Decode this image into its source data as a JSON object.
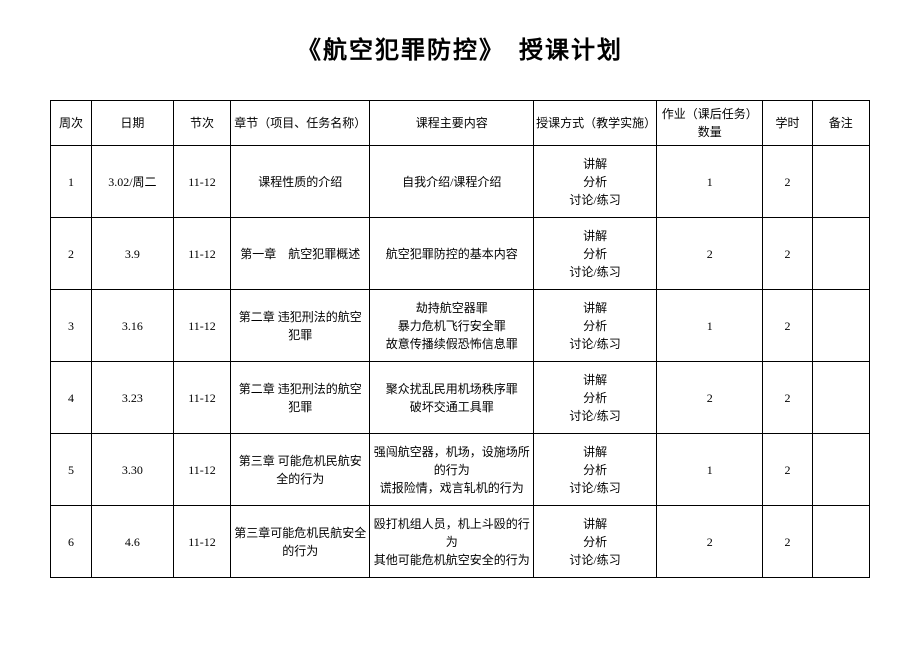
{
  "title": "《航空犯罪防控》　授课计划",
  "headers": {
    "week": "周次",
    "date": "日期",
    "session": "节次",
    "chapter": "章节（项目、任务名称）",
    "content": "课程主要内容",
    "method": "授课方式（教学实施）",
    "homework": "作业（课后任务）\n数量",
    "hours": "学时",
    "remark": "备注"
  },
  "rows": [
    {
      "week": "1",
      "date": "3.02/周二",
      "session": "11-12",
      "chapter": "课程性质的介绍",
      "content": "自我介绍/课程介绍",
      "method": "讲解\n分析\n讨论/练习",
      "homework": "1",
      "hours": "2",
      "remark": ""
    },
    {
      "week": "2",
      "date": "3.9",
      "session": "11-12",
      "chapter": "第一章　航空犯罪概述",
      "content": "航空犯罪防控的基本内容",
      "method": "讲解\n分析\n讨论/练习",
      "homework": "2",
      "hours": "2",
      "remark": ""
    },
    {
      "week": "3",
      "date": "3.16",
      "session": "11-12",
      "chapter": "第二章 违犯刑法的航空犯罪",
      "content": "劫持航空器罪\n暴力危机飞行安全罪\n故意传播续假恐怖信息罪",
      "method": "讲解\n分析\n讨论/练习",
      "homework": "1",
      "hours": "2",
      "remark": ""
    },
    {
      "week": "4",
      "date": "3.23",
      "session": "11-12",
      "chapter": "第二章 违犯刑法的航空犯罪",
      "content": "聚众扰乱民用机场秩序罪\n破坏交通工具罪",
      "method": "讲解\n分析\n讨论/练习",
      "homework": "2",
      "hours": "2",
      "remark": ""
    },
    {
      "week": "5",
      "date": "3.30",
      "session": "11-12",
      "chapter": "第三章 可能危机民航安全的行为",
      "content": "强闯航空器，机场，设施场所的行为\n谎报险情，戏言轧机的行为",
      "method": "讲解\n分析\n讨论/练习",
      "homework": "1",
      "hours": "2",
      "remark": ""
    },
    {
      "week": "6",
      "date": "4.6",
      "session": "11-12",
      "chapter": "第三章可能危机民航安全的行为",
      "content": "殴打机组人员，机上斗殴的行为\n其他可能危机航空安全的行为",
      "method": "讲解\n分析\n讨论/练习",
      "homework": "2",
      "hours": "2",
      "remark": ""
    }
  ]
}
